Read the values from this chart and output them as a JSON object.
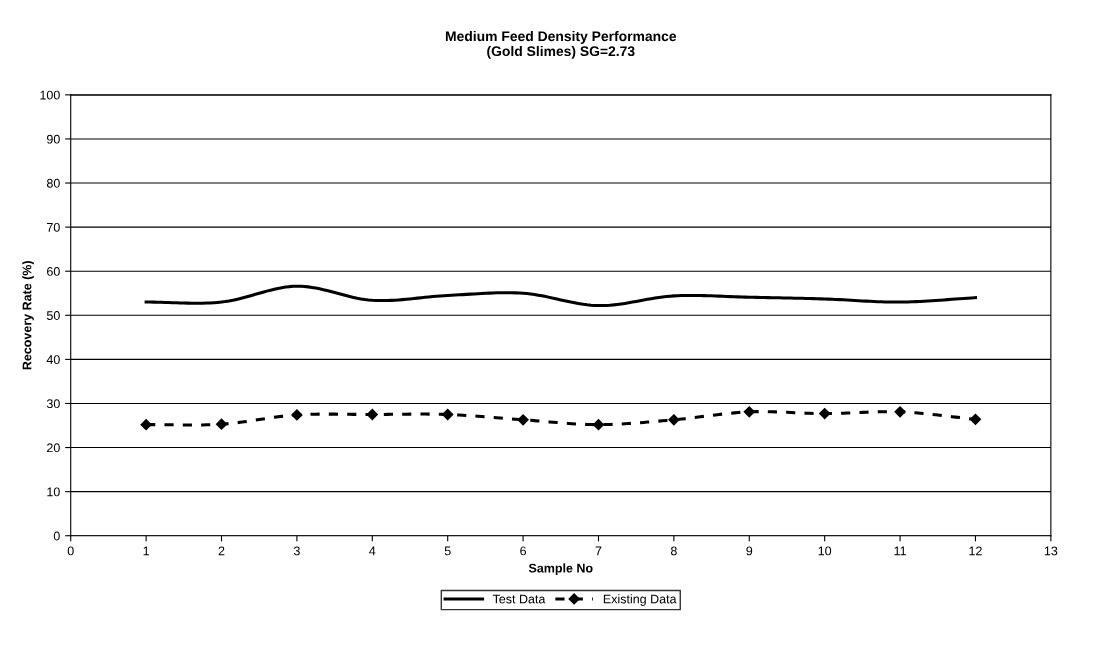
{
  "chart_data": {
    "type": "line",
    "title": "Medium Feed Density Performance\n(Gold Slimes) SG=2.73",
    "xlabel": "Sample No",
    "ylabel": "Recovery Rate (%)",
    "x": [
      1,
      2,
      3,
      4,
      5,
      6,
      7,
      8,
      9,
      10,
      11,
      12
    ],
    "series": [
      {
        "name": "Test Data",
        "color": "#000000",
        "values": [
          53,
          53,
          56.6,
          53.4,
          54.5,
          55,
          52.2,
          54.4,
          54.1,
          53.7,
          53,
          54
        ],
        "line_style": "solid",
        "marker": "none"
      },
      {
        "name": "Existing Data",
        "color": "#000000",
        "values": [
          25.2,
          25.3,
          27.4,
          27.5,
          27.5,
          26.3,
          25.2,
          26.3,
          28.1,
          27.7,
          28.1,
          26.4
        ],
        "line_style": "dashed",
        "marker": "diamond"
      }
    ],
    "xlim": [
      0,
      13
    ],
    "xticks": [
      0,
      1,
      2,
      3,
      4,
      5,
      6,
      7,
      8,
      9,
      10,
      11,
      12,
      13
    ],
    "ylim": [
      0,
      100
    ],
    "yticks": [
      0,
      10,
      20,
      30,
      40,
      50,
      60,
      70,
      80,
      90,
      100
    ],
    "grid": "y",
    "legend": "bottom"
  }
}
